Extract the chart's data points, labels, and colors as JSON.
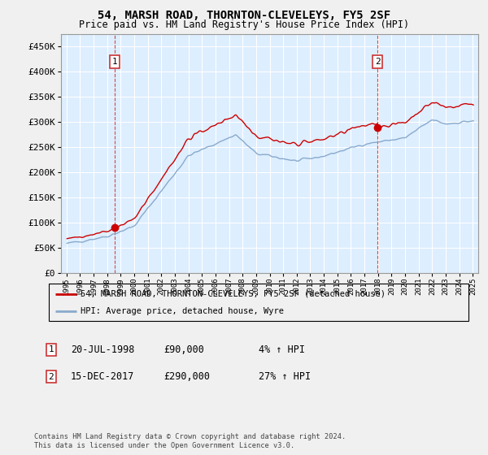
{
  "title": "54, MARSH ROAD, THORNTON-CLEVELEYS, FY5 2SF",
  "subtitle": "Price paid vs. HM Land Registry's House Price Index (HPI)",
  "ylim": [
    0,
    475000
  ],
  "yticks": [
    0,
    50000,
    100000,
    150000,
    200000,
    250000,
    300000,
    350000,
    400000,
    450000
  ],
  "sale1_date": 1998.55,
  "sale1_price": 90000,
  "sale1_label": "1",
  "sale2_date": 2017.96,
  "sale2_price": 290000,
  "sale2_label": "2",
  "legend_line1": "54, MARSH ROAD, THORNTON-CLEVELEYS, FY5 2SF (detached house)",
  "legend_line2": "HPI: Average price, detached house, Wyre",
  "footnote": "Contains HM Land Registry data © Crown copyright and database right 2024.\nThis data is licensed under the Open Government Licence v3.0.",
  "line_color_red": "#cc0000",
  "line_color_blue": "#88aacc",
  "background_color": "#ddeeff",
  "grid_color": "#ffffff",
  "vline_color": "#cc0000",
  "box_color": "#cc3333",
  "fig_bg": "#f0f0f0"
}
